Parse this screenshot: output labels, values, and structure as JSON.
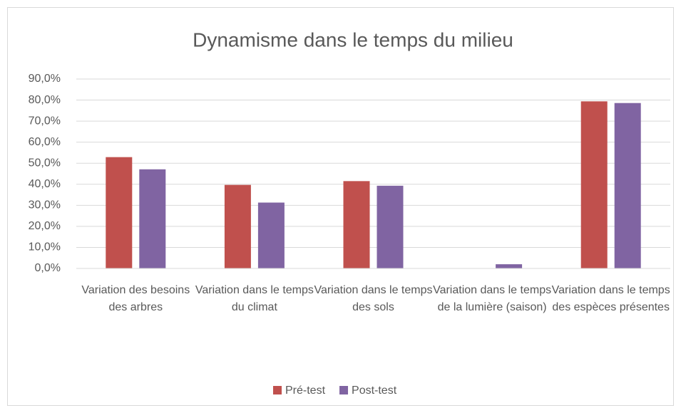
{
  "chart_data": {
    "type": "bar",
    "title": "Dynamisme dans le temps du milieu",
    "categories": [
      "Variation des besoins des arbres",
      "Variation dans le temps du climat",
      "Variation dans le temps des sols",
      "Variation dans le temps de la lumière (saison)",
      "Variation dans le temps des espèces présentes"
    ],
    "series": [
      {
        "name": "Pré-test",
        "color": "#c0504d",
        "values": [
          52.9,
          39.7,
          41.5,
          0,
          79.4
        ]
      },
      {
        "name": "Post-test",
        "color": "#8064a2",
        "values": [
          47.1,
          31.3,
          39.3,
          2.0,
          78.6
        ]
      }
    ],
    "ylim": [
      0,
      90
    ],
    "yticks": [
      {
        "value": 0,
        "label": "0,0%"
      },
      {
        "value": 10,
        "label": "10,0%"
      },
      {
        "value": 20,
        "label": "20,0%"
      },
      {
        "value": 30,
        "label": "30,0%"
      },
      {
        "value": 40,
        "label": "40,0%"
      },
      {
        "value": 50,
        "label": "50,0%"
      },
      {
        "value": 60,
        "label": "60,0%"
      },
      {
        "value": 70,
        "label": "70,0%"
      },
      {
        "value": 80,
        "label": "80,0%"
      },
      {
        "value": 90,
        "label": "90,0%"
      }
    ],
    "grid": true,
    "legend": "bottom"
  }
}
